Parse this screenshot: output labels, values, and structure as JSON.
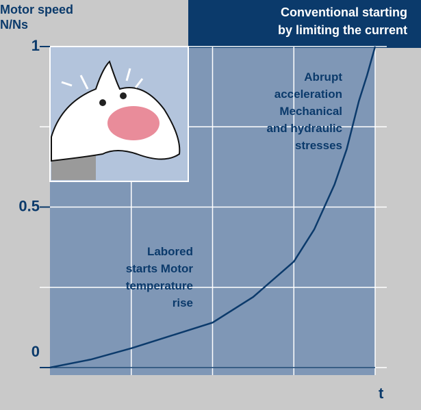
{
  "chart_data": {
    "type": "line",
    "title": [
      "Conventional starting",
      "by limiting the current"
    ],
    "y_label": [
      "Motor speed",
      "N/Ns"
    ],
    "x_label": "t",
    "annotations": [
      [
        "Abrupt",
        "acceleration",
        "Mechanical",
        "and hydraulic",
        "stresses"
      ],
      [
        "Labored",
        "starts Motor",
        "temperature",
        "rise"
      ]
    ],
    "x": [
      0,
      0.5,
      1,
      1.5,
      2,
      2.5,
      3,
      3.25,
      3.5,
      3.65,
      3.8,
      3.9,
      4
    ],
    "series": [
      {
        "color": "#0b3a6b",
        "values": [
          0,
          0.025,
          0.06,
          0.1,
          0.14,
          0.22,
          0.33,
          0.43,
          0.57,
          0.68,
          0.83,
          0.91,
          1
        ]
      }
    ],
    "xlim": [
      0,
      4
    ],
    "ylim": [
      0,
      1
    ],
    "xgrid": [
      1,
      2,
      3,
      4
    ],
    "ygrid": [
      0,
      0.25,
      0.5,
      0.75,
      1
    ],
    "yticks": [
      {
        "value": 0,
        "label": "0"
      },
      {
        "value": 0.5,
        "label": "0.5"
      },
      {
        "value": 1,
        "label": "1"
      }
    ],
    "grid": true
  }
}
